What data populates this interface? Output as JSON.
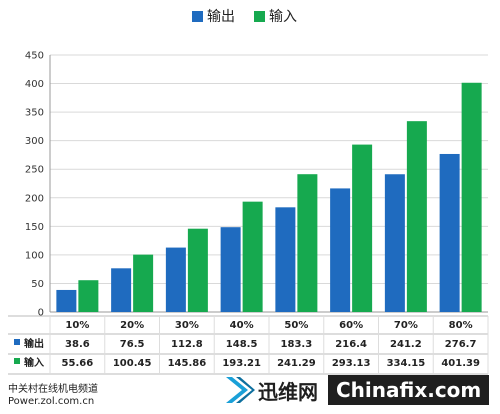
{
  "chart_data": {
    "type": "bar",
    "categories": [
      "10%",
      "20%",
      "30%",
      "40%",
      "50%",
      "60%",
      "70%",
      "80%"
    ],
    "series": [
      {
        "name": "输出",
        "color": "#1f6bbf",
        "values": [
          38.6,
          76.5,
          112.8,
          148.5,
          183.3,
          216.4,
          241.2,
          276.7
        ],
        "labels": [
          "38.6",
          "76.5",
          "112.8",
          "148.5",
          "183.3",
          "216.4",
          "241.2",
          "276.7"
        ]
      },
      {
        "name": "输入",
        "color": "#16a94f",
        "values": [
          55.66,
          100.45,
          145.86,
          193.21,
          241.29,
          293.13,
          334.15,
          401.39
        ],
        "labels": [
          "55.66",
          "100.45",
          "145.86",
          "193.21",
          "241.29",
          "293.13",
          "334.15",
          "401.39"
        ]
      }
    ],
    "ylim": [
      0,
      450
    ],
    "yticks": [
      0,
      50,
      100,
      150,
      200,
      250,
      300,
      350,
      400,
      450
    ],
    "grid": true,
    "legend_position": "top-center",
    "data_table": true
  },
  "footer": {
    "line1": "中关村在线机电频道",
    "line2": "Power.zol.com.cn"
  },
  "watermark": {
    "name": "迅维网",
    "site": "Chinafix.com"
  }
}
